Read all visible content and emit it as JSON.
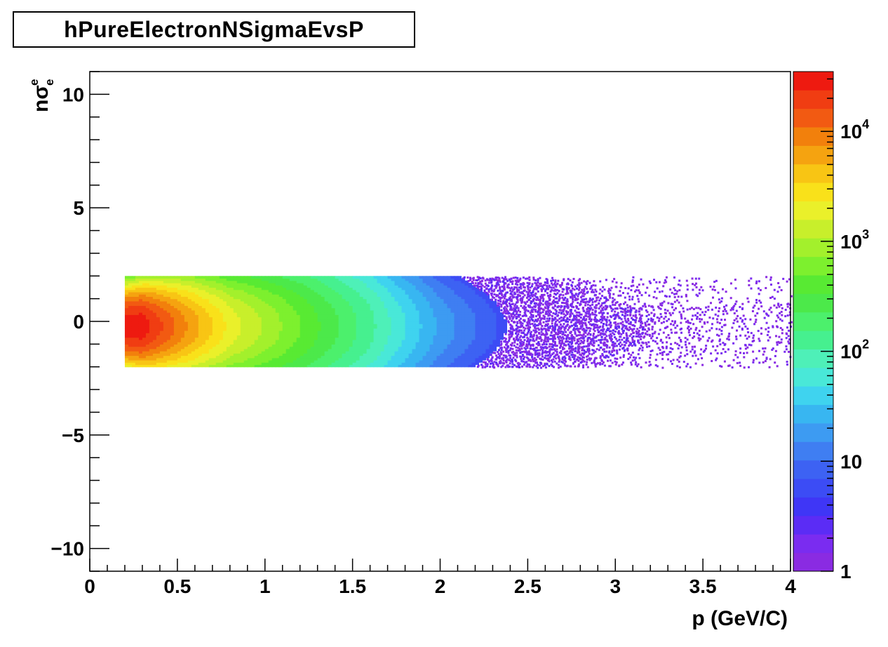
{
  "chart_data": {
    "type": "heatmap",
    "title": "hPureElectronNSigmaEvsP",
    "xlabel": "p (GeV/C)",
    "ylabel": "nσ",
    "ylabel_sup": "e",
    "ylabel_sub": "e",
    "xlim": [
      0,
      4
    ],
    "ylim": [
      -11,
      11
    ],
    "x_ticks": [
      0,
      0.5,
      1,
      1.5,
      2,
      2.5,
      3,
      3.5,
      4
    ],
    "x_tick_labels": [
      "0",
      "0.5",
      "1",
      "1.5",
      "2",
      "2.5",
      "3",
      "3.5",
      "4"
    ],
    "y_ticks": [
      -10,
      -5,
      0,
      5,
      10
    ],
    "y_tick_labels": [
      "−10",
      "−5",
      "0",
      "5",
      "10"
    ],
    "z_scale": "log",
    "z_range": [
      1,
      35000
    ],
    "z_ticks": [
      1,
      10,
      100,
      1000,
      10000
    ],
    "z_tick_labels": [
      "1",
      "10",
      "10^2",
      "10^3",
      "10^4"
    ],
    "colormap": [
      "#8a2be2",
      "#7a2cf0",
      "#5b2cf5",
      "#3f36f6",
      "#3c4cf5",
      "#3d62f3",
      "#3f7ef2",
      "#3d9bf2",
      "#38b6f1",
      "#3fd3ef",
      "#49e8d8",
      "#4ef0b8",
      "#46f08f",
      "#4cf06c",
      "#4ce94a",
      "#58ea33",
      "#7df02e",
      "#a3f02c",
      "#c8ef2b",
      "#eaf02a",
      "#f9e11a",
      "#f8c514",
      "#f5a310",
      "#f2800c",
      "#f25a12",
      "#f03d12",
      "#ee1a10"
    ],
    "data_region": {
      "x_range": [
        0.2,
        4.0
      ],
      "y_range": [
        -2.0,
        2.0
      ],
      "peak_count": 30000,
      "peak_location": [
        0.3,
        -0.2
      ],
      "description_counts_vs_p": [
        {
          "p": 0.3,
          "counts": 30000
        },
        {
          "p": 0.5,
          "counts": 10000
        },
        {
          "p": 0.8,
          "counts": 2000
        },
        {
          "p": 1.2,
          "counts": 500
        },
        {
          "p": 1.6,
          "counts": 120
        },
        {
          "p": 2.0,
          "counts": 20
        },
        {
          "p": 2.5,
          "counts": 4
        },
        {
          "p": 3.0,
          "counts": 2
        },
        {
          "p": 3.5,
          "counts": 1
        },
        {
          "p": 4.0,
          "counts": 1
        }
      ]
    },
    "grid": false,
    "legend": "none"
  }
}
